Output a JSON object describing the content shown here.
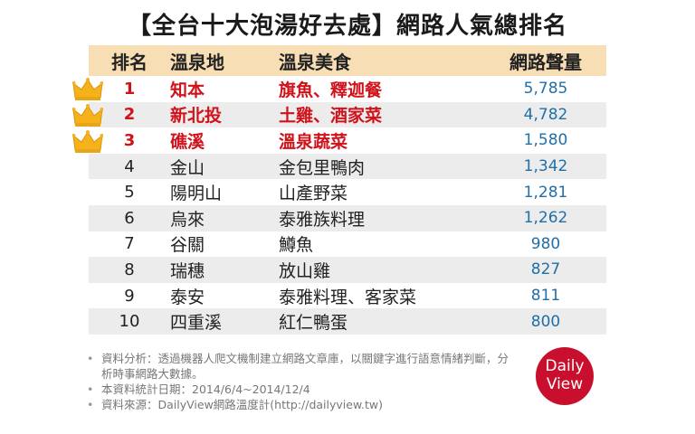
{
  "title": "【全台十大泡湯好去處】網路人氣總排名",
  "table": {
    "headers": {
      "rank": "排名",
      "place": "溫泉地",
      "food": "溫泉美食",
      "volume": "網路聲量"
    },
    "rows": [
      {
        "rank": "1",
        "place": "知本",
        "food": "旗魚、釋迦餐",
        "volume": "5,785",
        "crown": true
      },
      {
        "rank": "2",
        "place": "新北投",
        "food": "土雞、酒家菜",
        "volume": "4,782",
        "crown": true
      },
      {
        "rank": "3",
        "place": "礁溪",
        "food": "溫泉蔬菜",
        "volume": "1,580",
        "crown": true
      },
      {
        "rank": "4",
        "place": "金山",
        "food": "金包里鴨肉",
        "volume": "1,342"
      },
      {
        "rank": "5",
        "place": "陽明山",
        "food": "山產野菜",
        "volume": "1,281"
      },
      {
        "rank": "6",
        "place": "烏來",
        "food": "泰雅族料理",
        "volume": "1,262"
      },
      {
        "rank": "7",
        "place": "谷關",
        "food": "鱒魚",
        "volume": "980"
      },
      {
        "rank": "8",
        "place": "瑞穗",
        "food": "放山雞",
        "volume": "827"
      },
      {
        "rank": "9",
        "place": "泰安",
        "food": "泰雅料理、客家菜",
        "volume": "811"
      },
      {
        "rank": "10",
        "place": "四重溪",
        "food": "紅仁鴨蛋",
        "volume": "800"
      }
    ]
  },
  "notes": [
    "資料分析：透過機器人爬文機制建立網路文章庫，以關鍵字進行語意情緒判斷，分析時事網路大數據。",
    "本資料統計日期：2014/6/4~2014/12/4",
    "資料來源：DailyView網路溫度計(http://dailyview.tw)"
  ],
  "logo": {
    "line1": "Daily",
    "line2": "View"
  },
  "colors": {
    "header_bg": "#f8deb5",
    "top3_text": "#d0121b",
    "volume_text": "#1f6fa8",
    "logo_bg": "#c8102e",
    "crown": "#f5b21a"
  }
}
